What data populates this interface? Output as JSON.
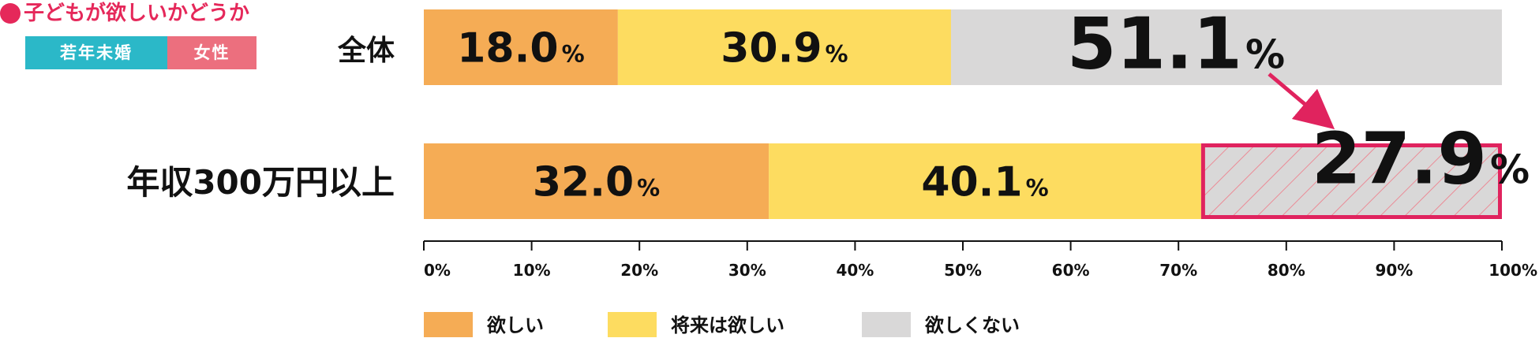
{
  "header": {
    "title": "子どもが欲しいかどうか",
    "tag_left": "若年未婚",
    "tag_right": "女性"
  },
  "chart_data": {
    "type": "bar",
    "orientation": "horizontal",
    "stacked": true,
    "categories": [
      "全体",
      "年収300万円以上"
    ],
    "series": [
      {
        "name": "欲しい",
        "values": [
          18.0,
          32.0
        ],
        "color": "#f5ac55"
      },
      {
        "name": "将来は欲しい",
        "values": [
          30.9,
          40.1
        ],
        "color": "#fddc60"
      },
      {
        "name": "欲しくない",
        "values": [
          51.1,
          27.9
        ],
        "color": "#d9d8d8"
      }
    ],
    "data_labels": [
      [
        "18.0",
        "30.9",
        "51.1"
      ],
      [
        "32.0",
        "40.1",
        "27.9"
      ]
    ],
    "percent_sign": "%",
    "highlight": {
      "category_index": 1,
      "series_index": 2,
      "color": "#e0235e"
    },
    "xlim": [
      0,
      100
    ],
    "xticks": [
      "0%",
      "10%",
      "20%",
      "30%",
      "40%",
      "50%",
      "60%",
      "70%",
      "80%",
      "90%",
      "100%"
    ],
    "legend": {
      "placement": "bottom"
    },
    "grid": false
  }
}
